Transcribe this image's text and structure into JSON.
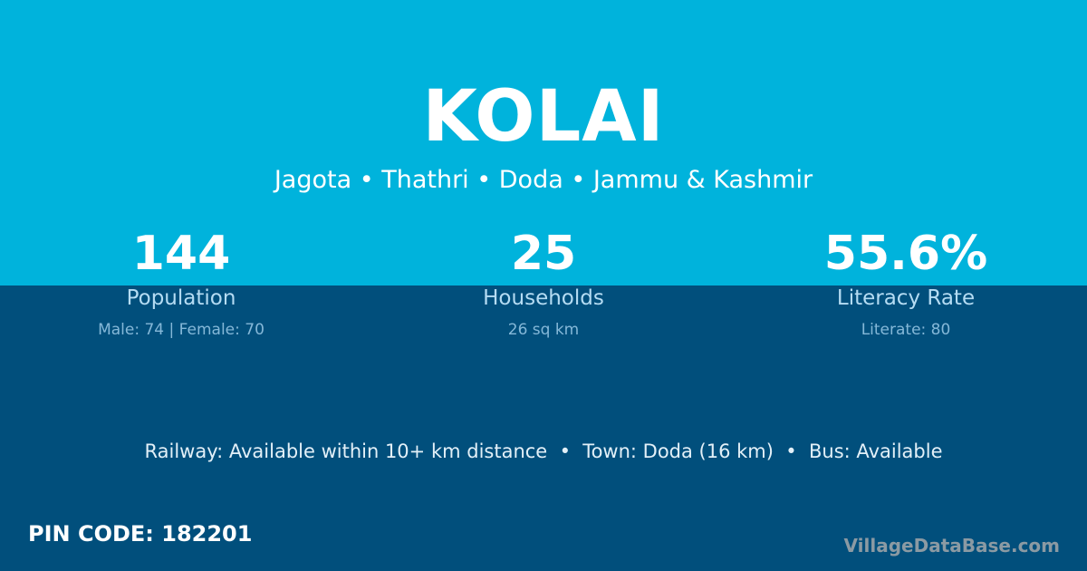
{
  "title": "KOLAI",
  "location": "Jagota • Thathri • Doda • Jammu & Kashmir",
  "stats": [
    {
      "value": "144",
      "label": "Population",
      "detail": "Male: 74 | Female: 70"
    },
    {
      "value": "25",
      "label": "Households",
      "detail": "26 sq km"
    },
    {
      "value": "55.6%",
      "label": "Literacy Rate",
      "detail": "Literate: 80"
    }
  ],
  "connectivity": "Railway: Available within 10+ km distance  •  Town: Doda (16 km)  •  Bus: Available",
  "pin_code": "PIN CODE: 182201",
  "brand": "VillageDataBase.com",
  "colors": {
    "top": "#00b3dc",
    "bottom": "#014f7c"
  }
}
